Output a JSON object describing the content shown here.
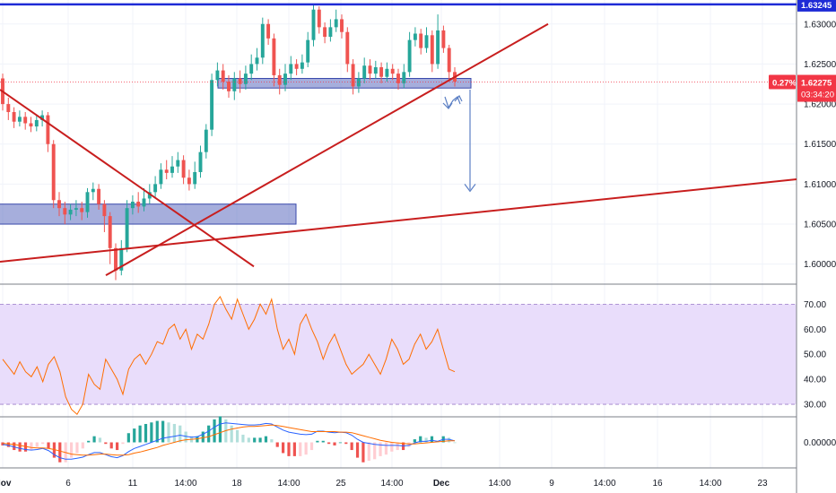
{
  "chart_data": {
    "type": "candlestick",
    "symbol_pair": "",
    "price_panel": {
      "y_range": [
        1.5975,
        1.633
      ],
      "y_ticks": [
        "1.63000",
        "1.62500",
        "1.62000",
        "1.61500",
        "1.61000",
        "1.60500",
        "1.60000"
      ],
      "tick_values": [
        1.63,
        1.625,
        1.62,
        1.615,
        1.61,
        1.605,
        1.6
      ],
      "last_price": 1.62275,
      "last_price_label": "1.62275",
      "change_label": "0.27%",
      "countdown_label": "03:34:20",
      "level_label": "1.63245",
      "level_value": 1.63245,
      "colors": {
        "up": "#26a69a",
        "down": "#ef5350",
        "level_line": "#1e2bd6",
        "trend": "#c81e1e",
        "zone": "#5c6bc0",
        "last_price": "#f23645"
      },
      "candles": [
        [
          1.6232,
          1.62,
          1.6238,
          1.6192
        ],
        [
          1.62,
          1.619,
          1.6208,
          1.618
        ],
        [
          1.619,
          1.6178,
          1.6196,
          1.617
        ],
        [
          1.6178,
          1.6184,
          1.6192,
          1.6172
        ],
        [
          1.6184,
          1.6176,
          1.619,
          1.6168
        ],
        [
          1.6176,
          1.6172,
          1.6184,
          1.6165
        ],
        [
          1.6172,
          1.618,
          1.6186,
          1.6166
        ],
        [
          1.618,
          1.6186,
          1.6192,
          1.6172
        ],
        [
          1.6186,
          1.615,
          1.619,
          1.614
        ],
        [
          1.615,
          1.608,
          1.6155,
          1.607
        ],
        [
          1.608,
          1.607,
          1.609,
          1.606
        ],
        [
          1.607,
          1.6062,
          1.6078,
          1.605
        ],
        [
          1.6062,
          1.6068,
          1.6075,
          1.6055
        ],
        [
          1.6068,
          1.607,
          1.608,
          1.606
        ],
        [
          1.607,
          1.6065,
          1.6078,
          1.6055
        ],
        [
          1.6065,
          1.609,
          1.6095,
          1.6058
        ],
        [
          1.609,
          1.6094,
          1.6102,
          1.608
        ],
        [
          1.6094,
          1.6075,
          1.61,
          1.6068
        ],
        [
          1.6075,
          1.606,
          1.608,
          1.604
        ],
        [
          1.606,
          1.602,
          1.6065,
          1.6
        ],
        [
          1.602,
          1.5992,
          1.6026,
          1.598
        ],
        [
          1.5992,
          1.602,
          1.603,
          1.5986
        ],
        [
          1.602,
          1.607,
          1.608,
          1.6015
        ],
        [
          1.607,
          1.6078,
          1.6086,
          1.6062
        ],
        [
          1.6078,
          1.6072,
          1.609,
          1.6064
        ],
        [
          1.6072,
          1.6082,
          1.6095,
          1.6066
        ],
        [
          1.6082,
          1.609,
          1.61,
          1.6075
        ],
        [
          1.609,
          1.61,
          1.611,
          1.6084
        ],
        [
          1.61,
          1.6118,
          1.6126,
          1.6094
        ],
        [
          1.6118,
          1.6114,
          1.613,
          1.6106
        ],
        [
          1.6114,
          1.6122,
          1.6135,
          1.6108
        ],
        [
          1.6122,
          1.613,
          1.614,
          1.6114
        ],
        [
          1.613,
          1.6108,
          1.6136,
          1.61
        ],
        [
          1.6108,
          1.61,
          1.6118,
          1.6092
        ],
        [
          1.61,
          1.6115,
          1.6128,
          1.6094
        ],
        [
          1.6115,
          1.614,
          1.6148,
          1.6108
        ],
        [
          1.614,
          1.6168,
          1.6175,
          1.6132
        ],
        [
          1.6168,
          1.623,
          1.6238,
          1.616
        ],
        [
          1.623,
          1.6242,
          1.6252,
          1.6222
        ],
        [
          1.6242,
          1.6228,
          1.625,
          1.6218
        ],
        [
          1.6228,
          1.6216,
          1.6236,
          1.6208
        ],
        [
          1.6216,
          1.6232,
          1.624,
          1.6205
        ],
        [
          1.6232,
          1.6225,
          1.6242,
          1.6214
        ],
        [
          1.6225,
          1.6238,
          1.6248,
          1.6218
        ],
        [
          1.6238,
          1.625,
          1.6262,
          1.623
        ],
        [
          1.625,
          1.6258,
          1.627,
          1.6242
        ],
        [
          1.6258,
          1.63,
          1.6308,
          1.625
        ],
        [
          1.63,
          1.6282,
          1.6306,
          1.6274
        ],
        [
          1.6282,
          1.6236,
          1.6288,
          1.6222
        ],
        [
          1.6236,
          1.6224,
          1.6244,
          1.6212
        ],
        [
          1.6224,
          1.6238,
          1.625,
          1.6216
        ],
        [
          1.6238,
          1.625,
          1.626,
          1.623
        ],
        [
          1.625,
          1.6244,
          1.6256,
          1.6236
        ],
        [
          1.6244,
          1.6252,
          1.6262,
          1.6238
        ],
        [
          1.6252,
          1.628,
          1.629,
          1.6246
        ],
        [
          1.628,
          1.6318,
          1.6324,
          1.6272
        ],
        [
          1.6318,
          1.6296,
          1.6322,
          1.6288
        ],
        [
          1.6296,
          1.6284,
          1.6302,
          1.6276
        ],
        [
          1.6284,
          1.6296,
          1.6306,
          1.6278
        ],
        [
          1.6296,
          1.6306,
          1.6318,
          1.629
        ],
        [
          1.6306,
          1.629,
          1.6312,
          1.6282
        ],
        [
          1.629,
          1.625,
          1.6296,
          1.624
        ],
        [
          1.625,
          1.6222,
          1.6256,
          1.6212
        ],
        [
          1.6222,
          1.6232,
          1.624,
          1.6214
        ],
        [
          1.6232,
          1.6248,
          1.6258,
          1.6226
        ],
        [
          1.6248,
          1.6238,
          1.6256,
          1.623
        ],
        [
          1.6238,
          1.6246,
          1.6254,
          1.6232
        ],
        [
          1.6246,
          1.6234,
          1.6252,
          1.6226
        ],
        [
          1.6234,
          1.6244,
          1.6252,
          1.6228
        ],
        [
          1.6244,
          1.6238,
          1.625,
          1.623
        ],
        [
          1.6238,
          1.6226,
          1.6244,
          1.6218
        ],
        [
          1.6226,
          1.624,
          1.625,
          1.622
        ],
        [
          1.624,
          1.628,
          1.629,
          1.6234
        ],
        [
          1.628,
          1.6288,
          1.6296,
          1.6272
        ],
        [
          1.6288,
          1.627,
          1.6294,
          1.6262
        ],
        [
          1.627,
          1.6286,
          1.6296,
          1.6264
        ],
        [
          1.6286,
          1.625,
          1.6292,
          1.624
        ],
        [
          1.625,
          1.6292,
          1.6312,
          1.6244
        ],
        [
          1.6292,
          1.627,
          1.6298,
          1.6264
        ],
        [
          1.627,
          1.624,
          1.6274,
          1.623
        ],
        [
          1.624,
          1.6228,
          1.6246,
          1.6222
        ]
      ]
    },
    "rsi_panel": {
      "y_range": [
        25,
        78
      ],
      "ticks": [
        "70.00",
        "60.00",
        "50.00",
        "40.00",
        "30.00"
      ],
      "tick_values": [
        70,
        60,
        50,
        40,
        30
      ],
      "band": [
        30,
        70
      ],
      "color": "#ff6d00",
      "band_fill": "#e9ddfb",
      "values": [
        48,
        45,
        42,
        47,
        43,
        41,
        45,
        39,
        46,
        49,
        43,
        33,
        28,
        26,
        30,
        42,
        38,
        36,
        48,
        44,
        40,
        34,
        44,
        48,
        50,
        46,
        50,
        55,
        54,
        60,
        62,
        56,
        60,
        52,
        58,
        56,
        62,
        70,
        73,
        68,
        64,
        72,
        66,
        60,
        64,
        70,
        66,
        72,
        60,
        52,
        56,
        50,
        62,
        66,
        60,
        55,
        48,
        54,
        58,
        52,
        46,
        42,
        44,
        46,
        50,
        46,
        42,
        48,
        56,
        52,
        46,
        48,
        54,
        58,
        52,
        55,
        60,
        52,
        44,
        43
      ]
    },
    "macd_panel": {
      "y_range": [
        -0.005,
        0.005
      ],
      "ticks": [
        "0.00000"
      ],
      "tick_values": [
        0
      ],
      "colors": {
        "macd": "#2962ff",
        "signal": "#ff6d00",
        "hist_up_strong": "#26a69a",
        "hist_up_weak": "#b2dfdb",
        "hist_down_strong": "#ef5350",
        "hist_down_weak": "#ffcdd2"
      },
      "macd": [
        -0.0004,
        -0.0006,
        -0.0009,
        -0.0012,
        -0.0014,
        -0.0015,
        -0.0014,
        -0.0012,
        -0.0016,
        -0.0024,
        -0.003,
        -0.0033,
        -0.0033,
        -0.0031,
        -0.0029,
        -0.0024,
        -0.002,
        -0.002,
        -0.0024,
        -0.0028,
        -0.003,
        -0.0026,
        -0.0018,
        -0.0012,
        -0.0008,
        -0.0004,
        0.0,
        0.0004,
        0.0008,
        0.001,
        0.0012,
        0.0014,
        0.0012,
        0.001,
        0.0011,
        0.0016,
        0.0022,
        0.003,
        0.0036,
        0.0038,
        0.0037,
        0.0036,
        0.0035,
        0.0034,
        0.0034,
        0.0035,
        0.0037,
        0.0036,
        0.003,
        0.0024,
        0.002,
        0.0018,
        0.0016,
        0.0015,
        0.0016,
        0.0022,
        0.0022,
        0.002,
        0.0019,
        0.002,
        0.0019,
        0.0014,
        0.0006,
        0.0,
        -0.0002,
        -0.0004,
        -0.0005,
        -0.0006,
        -0.0006,
        -0.0006,
        -0.0007,
        -0.0006,
        -0.0001,
        0.0002,
        0.0002,
        0.0004,
        0.0002,
        0.0006,
        0.0006,
        0.0003
      ],
      "signal": [
        -0.0002,
        -0.0003,
        -0.0004,
        -0.0006,
        -0.0008,
        -0.001,
        -0.0011,
        -0.0011,
        -0.0012,
        -0.0014,
        -0.0017,
        -0.002,
        -0.0023,
        -0.0024,
        -0.0025,
        -0.0025,
        -0.0024,
        -0.0023,
        -0.0023,
        -0.0024,
        -0.0025,
        -0.0025,
        -0.0024,
        -0.0021,
        -0.0019,
        -0.0016,
        -0.0013,
        -0.001,
        -0.0006,
        -0.0003,
        0.0,
        0.0003,
        0.0005,
        0.0006,
        0.0007,
        0.0009,
        0.0011,
        0.0015,
        0.0019,
        0.0023,
        0.0026,
        0.0028,
        0.003,
        0.0031,
        0.0031,
        0.0032,
        0.0033,
        0.0034,
        0.0033,
        0.0031,
        0.0029,
        0.0027,
        0.0025,
        0.0023,
        0.0021,
        0.0021,
        0.0021,
        0.0021,
        0.0021,
        0.002,
        0.002,
        0.0019,
        0.0016,
        0.0013,
        0.001,
        0.0007,
        0.0004,
        0.0002,
        0.0,
        -0.0001,
        -0.0002,
        -0.0003,
        -0.0003,
        -0.0002,
        -0.0001,
        0.0,
        0.0001,
        0.0002,
        0.0003,
        0.0003
      ]
    },
    "x_axis": {
      "labels": [
        "Nov",
        "6",
        "11",
        "14:00",
        "18",
        "14:00",
        "25",
        "14:00",
        "Dec",
        "14:00",
        "9",
        "14:00",
        "16",
        "14:00",
        "23"
      ],
      "bold": [
        "Nov",
        "Dec"
      ]
    }
  }
}
